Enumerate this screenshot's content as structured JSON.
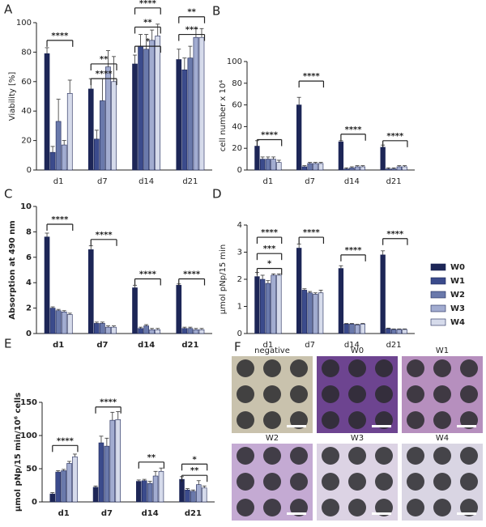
{
  "chart_data": [
    {
      "type": "bar",
      "panel": "A",
      "y_label": "Viability [%]",
      "categories": [
        "d1",
        "d7",
        "d14",
        "d21"
      ],
      "ylim": [
        0,
        100
      ],
      "yticks": [
        0,
        20,
        40,
        60,
        80,
        100
      ],
      "series": [
        {
          "name": "W0",
          "color": "#1d2657",
          "values": [
            79,
            55,
            72,
            75
          ],
          "errors": [
            4,
            7,
            6,
            7
          ]
        },
        {
          "name": "W1",
          "color": "#3b4b8c",
          "values": [
            12,
            21,
            84,
            68
          ],
          "errors": [
            4,
            6,
            8,
            8
          ]
        },
        {
          "name": "W2",
          "color": "#6a79ab",
          "values": [
            33,
            47,
            82,
            76
          ],
          "errors": [
            15,
            15,
            10,
            8
          ]
        },
        {
          "name": "W3",
          "color": "#a2acd0",
          "values": [
            17,
            70,
            88,
            90
          ],
          "errors": [
            3,
            11,
            7,
            6
          ]
        },
        {
          "name": "W4",
          "color": "#d6dbeb",
          "values": [
            52,
            60,
            91,
            90
          ],
          "errors": [
            9,
            17,
            8,
            6
          ]
        }
      ],
      "annotations": [
        {
          "text": "****",
          "category": 0,
          "y": 88
        },
        {
          "text": "****",
          "category": 1,
          "y": 62
        },
        {
          "text": "**",
          "category": 1,
          "y": 72
        },
        {
          "text": "*",
          "category": 2,
          "y": 84
        },
        {
          "text": "**",
          "category": 2,
          "y": 97
        },
        {
          "text": "****",
          "category": 2,
          "y": 110
        },
        {
          "text": "***",
          "category": 3,
          "y": 92
        },
        {
          "text": "**",
          "category": 3,
          "y": 104
        }
      ]
    },
    {
      "type": "bar",
      "panel": "B",
      "y_label": "cell number x 10⁴",
      "categories": [
        "d1",
        "d7",
        "d14",
        "d21"
      ],
      "ylim": [
        0,
        100
      ],
      "yticks": [
        0,
        20,
        40,
        60,
        80,
        100
      ],
      "series": [
        {
          "name": "W0",
          "color": "#1d2657",
          "values": [
            22,
            60,
            26,
            21
          ],
          "errors": [
            5,
            7,
            1,
            2
          ]
        },
        {
          "name": "W1",
          "color": "#3b4b8c",
          "values": [
            10,
            3,
            1,
            1
          ],
          "errors": [
            2,
            1,
            1,
            1
          ]
        },
        {
          "name": "W2",
          "color": "#6a79ab",
          "values": [
            10,
            6,
            2,
            1
          ],
          "errors": [
            2,
            1,
            1,
            1
          ]
        },
        {
          "name": "W3",
          "color": "#a2acd0",
          "values": [
            10,
            6,
            3,
            3
          ],
          "errors": [
            2,
            1,
            1,
            1
          ]
        },
        {
          "name": "W4",
          "color": "#d6dbeb",
          "values": [
            7,
            6,
            3,
            3
          ],
          "errors": [
            2,
            1,
            1,
            1
          ]
        }
      ],
      "annotations": [
        {
          "text": "****",
          "category": 0,
          "y": 28
        },
        {
          "text": "****",
          "category": 1,
          "y": 82
        },
        {
          "text": "****",
          "category": 2,
          "y": 33
        },
        {
          "text": "****",
          "category": 3,
          "y": 27
        }
      ]
    },
    {
      "type": "bar",
      "panel": "C",
      "y_label": "Absorption at 490 nm",
      "categories": [
        "d1",
        "d7",
        "d14",
        "d21"
      ],
      "ylim": [
        0,
        10
      ],
      "yticks": [
        0,
        2,
        4,
        6,
        8,
        10
      ],
      "series": [
        {
          "name": "W0",
          "color": "#1d2657",
          "values": [
            7.6,
            6.6,
            3.6,
            3.8
          ],
          "errors": [
            0.3,
            0.3,
            0.2,
            0.1
          ]
        },
        {
          "name": "W1",
          "color": "#3b4b8c",
          "values": [
            2.0,
            0.8,
            0.4,
            0.4
          ],
          "errors": [
            0.1,
            0.1,
            0.1,
            0.1
          ]
        },
        {
          "name": "W2",
          "color": "#6a79ab",
          "values": [
            1.8,
            0.8,
            0.6,
            0.4
          ],
          "errors": [
            0.1,
            0.1,
            0.1,
            0.1
          ]
        },
        {
          "name": "W3",
          "color": "#a2acd0",
          "values": [
            1.7,
            0.5,
            0.3,
            0.3
          ],
          "errors": [
            0.1,
            0.1,
            0.1,
            0.1
          ]
        },
        {
          "name": "W4",
          "color": "#d6dbeb",
          "values": [
            1.5,
            0.5,
            0.3,
            0.3
          ],
          "errors": [
            0.1,
            0.1,
            0.1,
            0.1
          ]
        }
      ],
      "annotations": [
        {
          "text": "****",
          "category": 0,
          "y": 8.6
        },
        {
          "text": "****",
          "category": 1,
          "y": 7.4
        },
        {
          "text": "****",
          "category": 2,
          "y": 4.3
        },
        {
          "text": "****",
          "category": 3,
          "y": 4.3
        }
      ]
    },
    {
      "type": "bar",
      "panel": "D",
      "y_label": "µmol pNp/15 min",
      "categories": [
        "d1",
        "d7",
        "d14",
        "d21"
      ],
      "ylim": [
        0,
        4
      ],
      "yticks": [
        0,
        1,
        2,
        3,
        4
      ],
      "series": [
        {
          "name": "W0",
          "color": "#1d2657",
          "values": [
            2.1,
            3.15,
            2.4,
            2.9
          ],
          "errors": [
            0.15,
            0.15,
            0.1,
            0.15
          ]
        },
        {
          "name": "W1",
          "color": "#3b4b8c",
          "values": [
            2.0,
            1.6,
            0.35,
            0.18
          ],
          "errors": [
            0.15,
            0.05,
            0.02,
            0.02
          ]
        },
        {
          "name": "W2",
          "color": "#6a79ab",
          "values": [
            1.85,
            1.5,
            0.35,
            0.15
          ],
          "errors": [
            0.1,
            0.05,
            0.02,
            0.02
          ]
        },
        {
          "name": "W3",
          "color": "#a2acd0",
          "values": [
            2.15,
            1.45,
            0.32,
            0.15
          ],
          "errors": [
            0.05,
            0.05,
            0.02,
            0.02
          ]
        },
        {
          "name": "W4",
          "color": "#d6dbeb",
          "values": [
            2.15,
            1.5,
            0.35,
            0.15
          ],
          "errors": [
            0.05,
            0.1,
            0.02,
            0.02
          ]
        }
      ],
      "annotations": [
        {
          "text": "*",
          "category": 0,
          "y": 2.4
        },
        {
          "text": "***",
          "category": 0,
          "y": 2.95
        },
        {
          "text": "****",
          "category": 0,
          "y": 3.55
        },
        {
          "text": "****",
          "category": 1,
          "y": 3.55
        },
        {
          "text": "****",
          "category": 2,
          "y": 2.9
        },
        {
          "text": "****",
          "category": 3,
          "y": 3.5
        }
      ]
    },
    {
      "type": "bar",
      "panel": "E",
      "y_label": "µmol pNp/15 min/10⁶ cells",
      "categories": [
        "d1",
        "d7",
        "d14",
        "d21"
      ],
      "ylim": [
        0,
        150
      ],
      "yticks": [
        0,
        50,
        100,
        150
      ],
      "series": [
        {
          "name": "W0",
          "color": "#1d2657",
          "values": [
            12,
            22,
            31,
            34
          ],
          "errors": [
            2,
            2,
            2,
            4
          ]
        },
        {
          "name": "W1",
          "color": "#3b4b8c",
          "values": [
            45,
            89,
            32,
            18
          ],
          "errors": [
            2,
            10,
            2,
            2
          ]
        },
        {
          "name": "W2",
          "color": "#6a79ab",
          "values": [
            47,
            84,
            28,
            16
          ],
          "errors": [
            2,
            12,
            3,
            2
          ]
        },
        {
          "name": "W3",
          "color": "#a2acd0",
          "values": [
            58,
            123,
            39,
            26
          ],
          "errors": [
            3,
            12,
            7,
            6
          ]
        },
        {
          "name": "W4",
          "color": "#d6dbeb",
          "values": [
            68,
            124,
            46,
            21
          ],
          "errors": [
            4,
            12,
            5,
            3
          ]
        }
      ],
      "annotations": [
        {
          "text": "****",
          "category": 0,
          "y": 85
        },
        {
          "text": "****",
          "category": 1,
          "y": 143
        },
        {
          "text": "**",
          "category": 2,
          "y": 60
        },
        {
          "text": "**",
          "category": 3,
          "y": 40
        },
        {
          "text": "*",
          "category": 3,
          "y": 57
        }
      ]
    }
  ],
  "micrographs": {
    "panel": "F",
    "labels": [
      "negative",
      "W0",
      "W1",
      "W2",
      "W3",
      "W4"
    ]
  }
}
